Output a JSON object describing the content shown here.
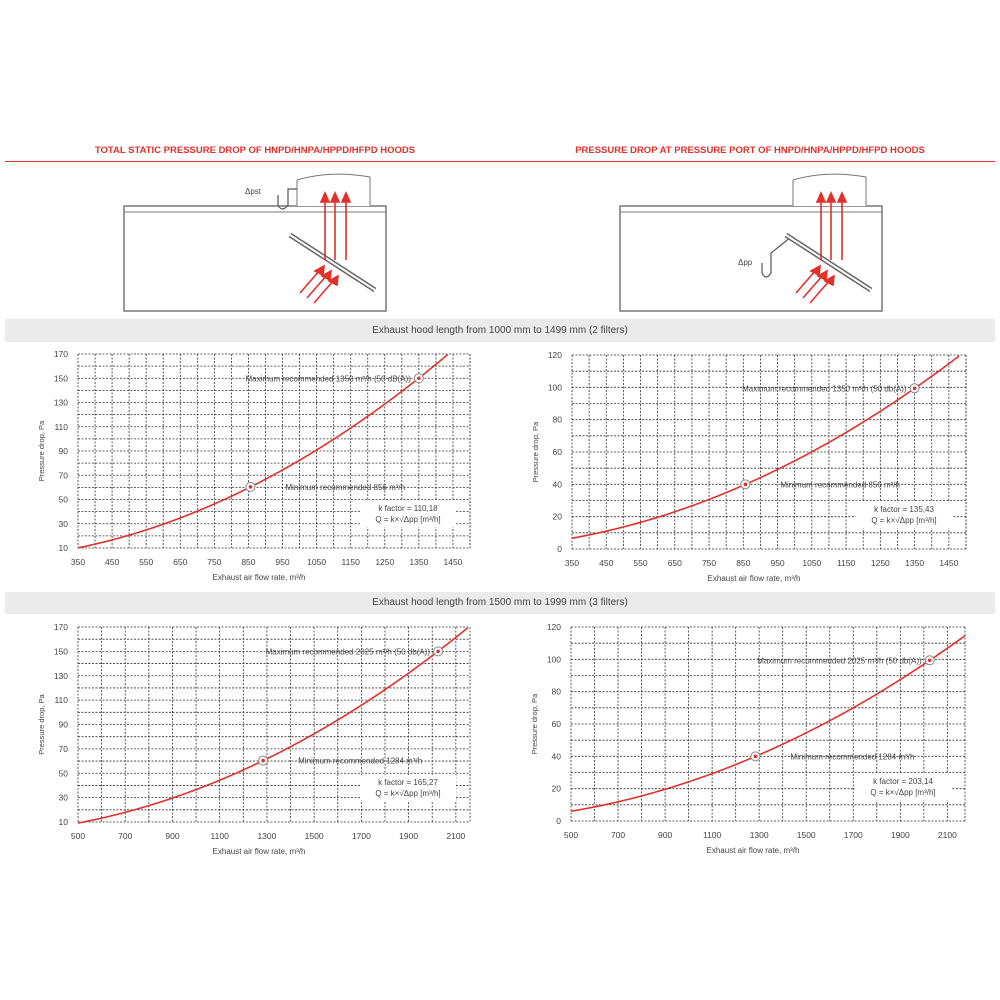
{
  "titles": {
    "left": "TOTAL STATIC PRESSURE DROP OF HNPD/HNPA/HPPD/HFPD HOODS",
    "right": "PRESSURE DROP AT PRESSURE PORT OF HNPD/HNPA/HPPD/HFPD HOODS"
  },
  "diagrams": {
    "left_label": "Δpst",
    "right_label": "Δpp"
  },
  "bands": {
    "first": "Exhaust hood length from 1000 mm to 1499 mm (2 filters)",
    "second": "Exhaust hood length from 1500 mm to 1999 mm (3 filters)"
  },
  "colors": {
    "accent": "#e0312b",
    "band": "#ebebeb",
    "grid": "#333333"
  },
  "chart_data": [
    {
      "type": "line",
      "xlabel": "Exhaust air flow rate, m³/h",
      "ylabel": "Pressure drop, Pa",
      "xlim": [
        350,
        1500
      ],
      "ylim": [
        10,
        170
      ],
      "xticks": [
        350,
        450,
        550,
        650,
        750,
        850,
        950,
        1050,
        1150,
        1250,
        1350,
        1450
      ],
      "yticks": [
        10,
        30,
        50,
        70,
        90,
        110,
        130,
        150,
        170
      ],
      "grid": true,
      "k_factor": 110.18,
      "k_label": "k factor = 110,18",
      "formula": "Q = k×√Δpp [m³/h]",
      "markers": [
        {
          "x": 856,
          "y": 60.4,
          "label": "Minimum recommended 856 m³/h"
        },
        {
          "x": 1350,
          "y": 150,
          "label": "Maximum recommended 1350 m³/h (50 dB(A))"
        }
      ]
    },
    {
      "type": "line",
      "xlabel": "Exhaust air flow rate, m³/h",
      "ylabel": "Pressure drop, Pa",
      "xlim": [
        350,
        1500
      ],
      "ylim": [
        0,
        120
      ],
      "xticks": [
        350,
        450,
        550,
        650,
        750,
        850,
        950,
        1050,
        1150,
        1250,
        1350,
        1450
      ],
      "yticks": [
        0,
        20,
        40,
        60,
        80,
        100,
        120
      ],
      "grid": true,
      "k_factor": 135.43,
      "k_label": "k factor = 135,43",
      "formula": "Q = k×√Δpp [m³/h]",
      "markers": [
        {
          "x": 856,
          "y": 40,
          "label": "Minimum recommended 856 m³/h"
        },
        {
          "x": 1350,
          "y": 99.4,
          "label": "Maximum recommended 1350 m³/h (50 db(A))"
        }
      ]
    },
    {
      "type": "line",
      "xlabel": "Exhaust air flow rate, m³/h",
      "ylabel": "Pressure drop, Pa",
      "xlim": [
        500,
        2160
      ],
      "ylim": [
        10,
        170
      ],
      "xticks": [
        500,
        700,
        900,
        1100,
        1300,
        1500,
        1700,
        1900,
        2100
      ],
      "yticks": [
        10,
        30,
        50,
        70,
        90,
        110,
        130,
        150,
        170
      ],
      "grid": true,
      "k_factor": 165.27,
      "k_label": "k factor = 165,27",
      "formula": "Q = k×√Δpp [m³/h]",
      "markers": [
        {
          "x": 1284,
          "y": 60.4,
          "label": "Minimum recommended 1284 m³/h"
        },
        {
          "x": 2025,
          "y": 150,
          "label": "Maximum recommended 2025 m³/h (50 db(A))"
        }
      ]
    },
    {
      "type": "line",
      "xlabel": "Exhaust air flow rate, m³/h",
      "ylabel": "Pressure drop, Pa",
      "xlim": [
        500,
        2175
      ],
      "ylim": [
        0,
        120
      ],
      "xticks": [
        500,
        700,
        900,
        1100,
        1300,
        1500,
        1700,
        1900,
        2100
      ],
      "yticks": [
        0,
        20,
        40,
        60,
        80,
        100,
        120
      ],
      "grid": true,
      "k_factor": 203.14,
      "k_label": "k factor = 203,14",
      "formula": "Q = k×√Δpp [m³/h]",
      "markers": [
        {
          "x": 1284,
          "y": 40,
          "label": "Minimum recommended 1284 m³/h"
        },
        {
          "x": 2025,
          "y": 99.4,
          "label": "Maximum recommended 2025 m³/h (50 db(A))"
        }
      ]
    }
  ]
}
